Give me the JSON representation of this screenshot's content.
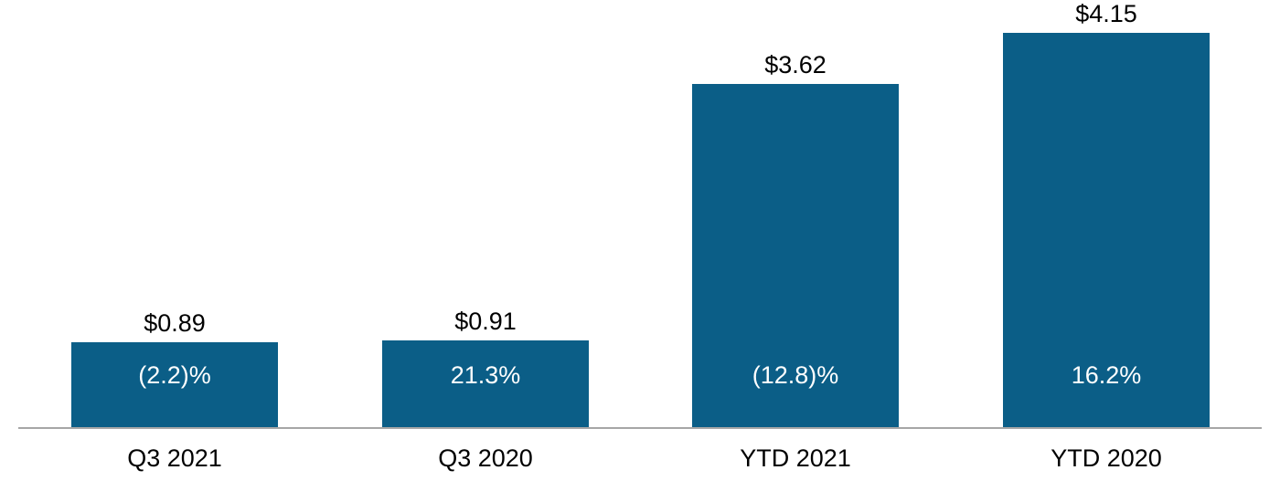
{
  "chart_data": {
    "type": "bar",
    "categories": [
      "Q3 2021",
      "Q3 2020",
      "YTD 2021",
      "YTD 2020"
    ],
    "values": [
      0.89,
      0.91,
      3.62,
      4.15
    ],
    "value_labels": [
      "$0.89",
      "$0.91",
      "$3.62",
      "$4.15"
    ],
    "inner_percent_labels": [
      "(2.2)%",
      "21.3%",
      "(12.8)%",
      "16.2%"
    ],
    "title": "",
    "xlabel": "",
    "ylabel": "",
    "ylim": [
      0,
      4.5
    ],
    "grid": false,
    "legend": false,
    "colors": {
      "bar_fill": "#0B5E87",
      "value_label_text": "#000000",
      "inner_label_text": "#FFFFFF",
      "axis_line": "#A6A6A6",
      "background": "#FFFFFF"
    }
  }
}
